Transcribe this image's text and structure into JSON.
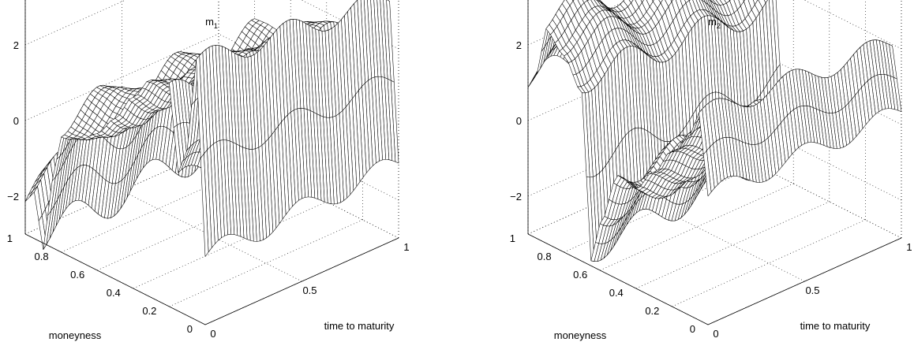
{
  "chart_data": [
    {
      "type": "surface",
      "title": "m",
      "title_subscript": "1",
      "xlabel": "time to maturity",
      "ylabel": "moneyness",
      "zlabel": "",
      "x_range": [
        0,
        1
      ],
      "y_range": [
        0,
        1
      ],
      "zlim": [
        -3,
        5
      ],
      "x_ticks": [
        "0",
        "0.5",
        "1"
      ],
      "y_ticks": [
        "0",
        "0.2",
        "0.4",
        "0.6",
        "0.8",
        "1"
      ],
      "z_ticks": [
        "−2",
        "0",
        "2"
      ],
      "grid": true,
      "moneyness_profile": {
        "y": [
          0,
          0.05,
          0.1,
          0.15,
          0.2,
          0.3,
          0.4,
          0.5,
          0.6,
          0.7,
          0.8,
          0.85,
          0.9,
          0.95,
          1
        ],
        "z": [
          -1.2,
          3.8,
          1.2,
          0.4,
          2.6,
          2.4,
          1.8,
          1.2,
          0.8,
          0.6,
          0.5,
          -0.8,
          -2.8,
          -1.5,
          -2.0
        ]
      },
      "maturity_ripple": {
        "amplitude": 0.5,
        "cycles": 2.5
      }
    },
    {
      "type": "surface",
      "title": "m",
      "title_subscript": "2",
      "xlabel": "time to maturity",
      "ylabel": "moneyness",
      "zlabel": "",
      "x_range": [
        0,
        1
      ],
      "y_range": [
        0,
        1
      ],
      "zlim": [
        -3,
        5
      ],
      "x_ticks": [
        "0",
        "0.5",
        "1"
      ],
      "y_ticks": [
        "0",
        "0.2",
        "0.4",
        "0.6",
        "0.8",
        "1"
      ],
      "z_ticks": [
        "−2",
        "0",
        "2"
      ],
      "grid": true,
      "moneyness_profile": {
        "y": [
          0,
          0.05,
          0.1,
          0.2,
          0.3,
          0.4,
          0.5,
          0.6,
          0.65,
          0.7,
          0.8,
          0.9,
          0.95,
          1
        ],
        "z": [
          0.4,
          2.4,
          1.6,
          0.8,
          0.0,
          -0.6,
          -0.3,
          -1.6,
          -2.6,
          1.8,
          2.6,
          3.0,
          1.6,
          1.0
        ]
      },
      "maturity_ripple": {
        "amplitude": 0.45,
        "cycles": 2.5
      }
    }
  ]
}
